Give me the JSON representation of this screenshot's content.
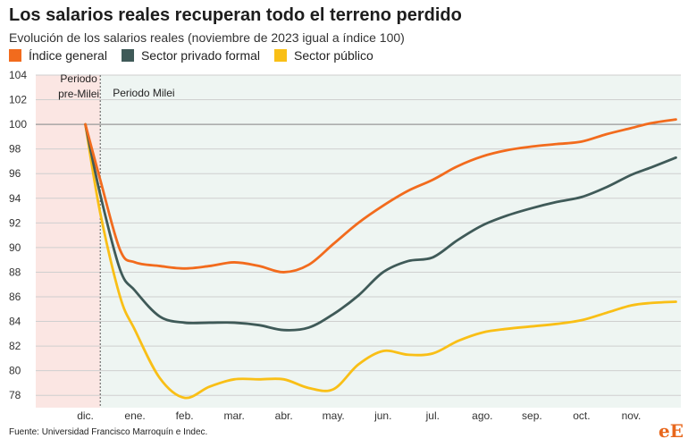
{
  "header": {
    "title": "Los salarios reales recuperan todo el terreno perdido",
    "subtitle": "Evolución de los salarios reales (noviembre de 2023 igual a índice 100)"
  },
  "footer": {
    "source": "Fuente: Universidad Francisco Marroquín e Indec.",
    "logo_e1": "e",
    "logo_e2": "E"
  },
  "colors": {
    "general": "#f26b1d",
    "privado": "#3f5a58",
    "publico": "#f9bf16",
    "pre_region": "#fbe6e3",
    "milei_region": "#eef5f2",
    "grid": "#cfcfcf",
    "baseline": "#9a9a9a"
  },
  "chart_data": {
    "type": "line",
    "title": "Los salarios reales recuperan todo el terreno perdido",
    "subtitle": "Evolución de los salarios reales (noviembre de 2023 igual a índice 100)",
    "xlabel": "",
    "ylabel": "",
    "ylim": [
      77,
      104
    ],
    "y_ticks": [
      78,
      80,
      82,
      84,
      86,
      88,
      90,
      92,
      94,
      96,
      98,
      100,
      102,
      104
    ],
    "x_tick_labels": [
      "dic.",
      "ene.",
      "feb.",
      "mar.",
      "abr.",
      "may.",
      "jun.",
      "jul.",
      "ago.",
      "sep.",
      "oct.",
      "nov."
    ],
    "x_tick_positions": [
      1,
      2,
      3,
      4,
      5,
      6,
      7,
      8,
      9,
      10,
      11,
      12
    ],
    "xlim": [
      0,
      13
    ],
    "baseline": 100,
    "grid": "horizontal",
    "legend_position": "top-left",
    "regions": [
      {
        "label": "Periodo pre-Milei",
        "label_lines": [
          "Periodo",
          "pre-Milei"
        ],
        "x_start": 0,
        "x_end": 1.3
      },
      {
        "label": "Periodo Milei",
        "label_lines": [
          "Periodo Milei"
        ],
        "x_start": 1.3,
        "x_end": 13
      }
    ],
    "series": [
      {
        "name": "Índice general",
        "color_key": "general",
        "x": [
          1,
          1.3,
          1.7,
          2,
          2.5,
          3,
          3.5,
          4,
          4.5,
          5,
          5.5,
          6,
          6.5,
          7,
          7.5,
          8,
          8.5,
          9,
          9.5,
          10,
          10.5,
          11,
          11.5,
          12,
          12.4,
          12.9
        ],
        "y": [
          100,
          95.5,
          89.8,
          88.8,
          88.5,
          88.3,
          88.5,
          88.8,
          88.5,
          88.0,
          88.6,
          90.3,
          92.0,
          93.4,
          94.6,
          95.5,
          96.6,
          97.4,
          97.9,
          98.2,
          98.4,
          98.6,
          99.2,
          99.7,
          100.1,
          100.4
        ]
      },
      {
        "name": "Sector privado formal",
        "color_key": "privado",
        "x": [
          1,
          1.3,
          1.7,
          2,
          2.5,
          3,
          3.5,
          4,
          4.5,
          5,
          5.5,
          6,
          6.5,
          7,
          7.5,
          8,
          8.5,
          9,
          9.5,
          10,
          10.5,
          11,
          11.5,
          12,
          12.4,
          12.9
        ],
        "y": [
          100,
          94.3,
          88.2,
          86.5,
          84.4,
          83.9,
          83.9,
          83.9,
          83.7,
          83.3,
          83.5,
          84.6,
          86.1,
          88.0,
          88.9,
          89.2,
          90.6,
          91.8,
          92.6,
          93.2,
          93.7,
          94.1,
          94.9,
          95.9,
          96.5,
          97.3
        ]
      },
      {
        "name": "Sector público",
        "color_key": "publico",
        "x": [
          1,
          1.3,
          1.7,
          2,
          2.5,
          3,
          3.5,
          4,
          4.5,
          5,
          5.5,
          6,
          6.5,
          7,
          7.5,
          8,
          8.5,
          9,
          9.5,
          10,
          10.5,
          11,
          11.5,
          12,
          12.4,
          12.9
        ],
        "y": [
          100,
          92.8,
          86.0,
          83.3,
          79.4,
          77.8,
          78.7,
          79.3,
          79.3,
          79.3,
          78.6,
          78.5,
          80.5,
          81.6,
          81.3,
          81.4,
          82.4,
          83.1,
          83.4,
          83.6,
          83.8,
          84.1,
          84.7,
          85.3,
          85.5,
          85.6
        ]
      }
    ]
  }
}
